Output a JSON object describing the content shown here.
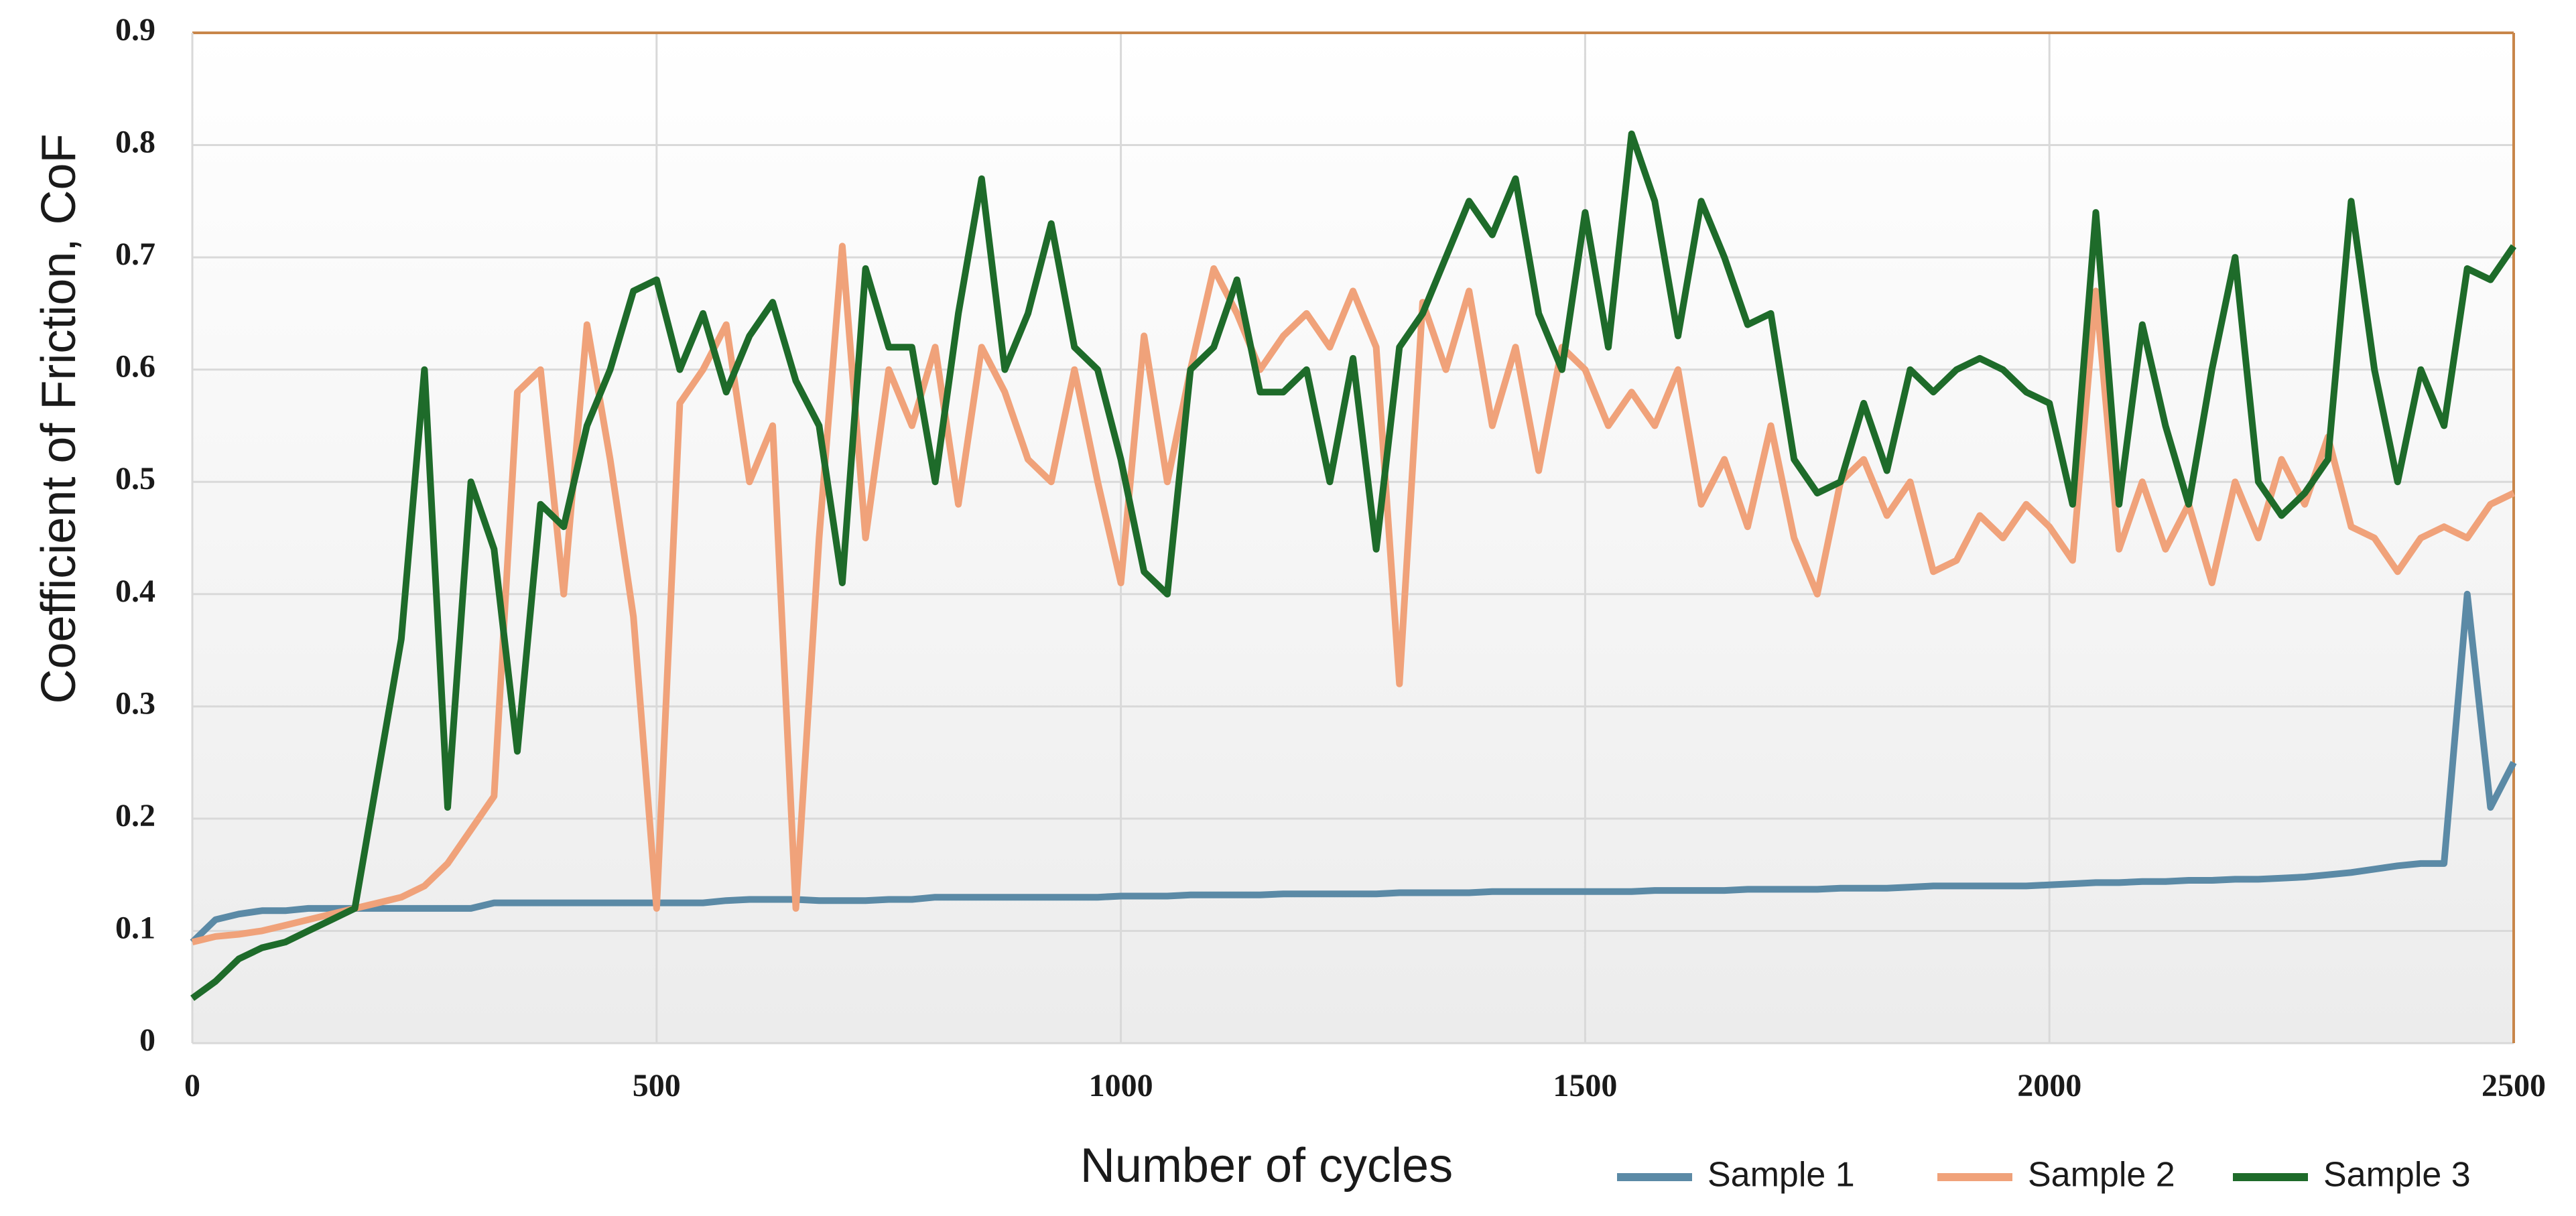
{
  "chart_data": {
    "type": "line",
    "xlabel": "Number of cycles",
    "ylabel": "Coefficient of Friction, CoF",
    "x": [
      0,
      25,
      50,
      75,
      100,
      125,
      150,
      175,
      200,
      225,
      250,
      275,
      300,
      325,
      350,
      375,
      400,
      425,
      450,
      475,
      500,
      525,
      550,
      575,
      600,
      625,
      650,
      675,
      700,
      725,
      750,
      775,
      800,
      825,
      850,
      875,
      900,
      925,
      950,
      975,
      1000,
      1025,
      1050,
      1075,
      1100,
      1125,
      1150,
      1175,
      1200,
      1225,
      1250,
      1275,
      1300,
      1325,
      1350,
      1375,
      1400,
      1425,
      1450,
      1475,
      1500,
      1525,
      1550,
      1575,
      1600,
      1625,
      1650,
      1675,
      1700,
      1725,
      1750,
      1775,
      1800,
      1825,
      1850,
      1875,
      1900,
      1925,
      1950,
      1975,
      2000,
      2025,
      2050,
      2075,
      2100,
      2125,
      2150,
      2175,
      2200,
      2225,
      2250,
      2275,
      2300,
      2325,
      2350,
      2375,
      2400,
      2425,
      2450,
      2475,
      2500
    ],
    "series": [
      {
        "name": "Sample 1",
        "color": "#5b8aa6",
        "values": [
          0.09,
          0.11,
          0.115,
          0.118,
          0.118,
          0.12,
          0.12,
          0.12,
          0.12,
          0.12,
          0.12,
          0.12,
          0.12,
          0.125,
          0.125,
          0.125,
          0.125,
          0.125,
          0.125,
          0.125,
          0.125,
          0.125,
          0.125,
          0.127,
          0.128,
          0.128,
          0.128,
          0.127,
          0.127,
          0.127,
          0.128,
          0.128,
          0.13,
          0.13,
          0.13,
          0.13,
          0.13,
          0.13,
          0.13,
          0.13,
          0.131,
          0.131,
          0.131,
          0.132,
          0.132,
          0.132,
          0.132,
          0.133,
          0.133,
          0.133,
          0.133,
          0.133,
          0.134,
          0.134,
          0.134,
          0.134,
          0.135,
          0.135,
          0.135,
          0.135,
          0.135,
          0.135,
          0.135,
          0.136,
          0.136,
          0.136,
          0.136,
          0.137,
          0.137,
          0.137,
          0.137,
          0.138,
          0.138,
          0.138,
          0.139,
          0.14,
          0.14,
          0.14,
          0.14,
          0.14,
          0.141,
          0.142,
          0.143,
          0.143,
          0.144,
          0.144,
          0.145,
          0.145,
          0.146,
          0.146,
          0.147,
          0.148,
          0.15,
          0.152,
          0.155,
          0.158,
          0.16,
          0.16,
          0.4,
          0.21,
          0.25
        ]
      },
      {
        "name": "Sample 2",
        "color": "#f0a27a",
        "values": [
          0.09,
          0.095,
          0.097,
          0.1,
          0.105,
          0.11,
          0.115,
          0.12,
          0.125,
          0.13,
          0.14,
          0.16,
          0.19,
          0.22,
          0.58,
          0.6,
          0.4,
          0.64,
          0.52,
          0.38,
          0.12,
          0.57,
          0.6,
          0.64,
          0.5,
          0.55,
          0.12,
          0.45,
          0.71,
          0.45,
          0.6,
          0.55,
          0.62,
          0.48,
          0.62,
          0.58,
          0.52,
          0.5,
          0.6,
          0.5,
          0.41,
          0.63,
          0.5,
          0.6,
          0.69,
          0.65,
          0.6,
          0.63,
          0.65,
          0.62,
          0.67,
          0.62,
          0.32,
          0.66,
          0.6,
          0.67,
          0.55,
          0.62,
          0.51,
          0.62,
          0.6,
          0.55,
          0.58,
          0.55,
          0.6,
          0.48,
          0.52,
          0.46,
          0.55,
          0.45,
          0.4,
          0.5,
          0.52,
          0.47,
          0.5,
          0.42,
          0.43,
          0.47,
          0.45,
          0.48,
          0.46,
          0.43,
          0.67,
          0.44,
          0.5,
          0.44,
          0.48,
          0.41,
          0.5,
          0.45,
          0.52,
          0.48,
          0.54,
          0.46,
          0.45,
          0.42,
          0.45,
          0.46,
          0.45,
          0.48,
          0.49
        ]
      },
      {
        "name": "Sample 3",
        "color": "#1e6b2a",
        "values": [
          0.04,
          0.055,
          0.075,
          0.085,
          0.09,
          0.1,
          0.11,
          0.12,
          0.24,
          0.36,
          0.6,
          0.21,
          0.5,
          0.44,
          0.26,
          0.48,
          0.46,
          0.55,
          0.6,
          0.67,
          0.68,
          0.6,
          0.65,
          0.58,
          0.63,
          0.66,
          0.59,
          0.55,
          0.41,
          0.69,
          0.62,
          0.62,
          0.5,
          0.65,
          0.77,
          0.6,
          0.65,
          0.73,
          0.62,
          0.6,
          0.52,
          0.42,
          0.4,
          0.6,
          0.62,
          0.68,
          0.58,
          0.58,
          0.6,
          0.5,
          0.61,
          0.44,
          0.62,
          0.65,
          0.7,
          0.75,
          0.72,
          0.77,
          0.65,
          0.6,
          0.74,
          0.62,
          0.81,
          0.75,
          0.63,
          0.75,
          0.7,
          0.64,
          0.65,
          0.52,
          0.49,
          0.5,
          0.57,
          0.51,
          0.6,
          0.58,
          0.6,
          0.61,
          0.6,
          0.58,
          0.57,
          0.48,
          0.74,
          0.48,
          0.64,
          0.55,
          0.48,
          0.6,
          0.7,
          0.5,
          0.47,
          0.49,
          0.52,
          0.75,
          0.6,
          0.5,
          0.6,
          0.55,
          0.69,
          0.68,
          0.71
        ]
      }
    ],
    "xlim": [
      0,
      2500
    ],
    "xticks": [
      0,
      500,
      1000,
      1500,
      2000,
      2500
    ],
    "ylim": [
      0,
      0.9
    ],
    "yticks": [
      0,
      0.1,
      0.2,
      0.3,
      0.4,
      0.5,
      0.6,
      0.7,
      0.8,
      0.9
    ],
    "grid": true,
    "legend": "bottom-right"
  }
}
